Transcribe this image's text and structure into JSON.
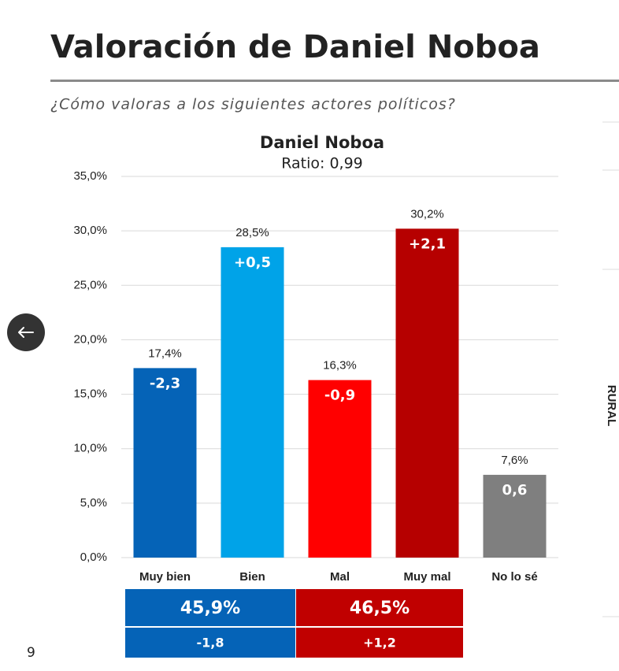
{
  "page_title": "Valoración de Daniel Noboa",
  "question": "¿Cómo valoras a los siguientes actores políticos?",
  "side_label": "RURAL",
  "page_number": "9",
  "chart_data": {
    "type": "bar",
    "title": "Daniel Noboa",
    "subtitle": "Ratio: 0,99",
    "categories": [
      "Muy bien",
      "Bien",
      "Mal",
      "Muy mal",
      "No lo sé"
    ],
    "values": [
      17.4,
      28.5,
      16.3,
      30.2,
      7.6
    ],
    "value_labels": [
      "17,4%",
      "28,5%",
      "16,3%",
      "30,2%",
      "7,6%"
    ],
    "changes": [
      -2.3,
      0.5,
      -0.9,
      2.1,
      0.6
    ],
    "change_labels": [
      "-2,3",
      "+0,5",
      "-0,9",
      "+2,1",
      "0,6"
    ],
    "colors": [
      "#0563b7",
      "#00a3e8",
      "#ff0000",
      "#b60000",
      "#7f7f7f"
    ],
    "ylim": [
      0,
      35
    ],
    "yticks": [
      {
        "value": 0,
        "label": "0,0%"
      },
      {
        "value": 5,
        "label": "5,0%"
      },
      {
        "value": 10,
        "label": "10,0%"
      },
      {
        "value": 15,
        "label": "15,0%"
      },
      {
        "value": 20,
        "label": "20,0%"
      },
      {
        "value": 25,
        "label": "25,0%"
      },
      {
        "value": 30,
        "label": "30,0%"
      },
      {
        "value": 35,
        "label": "35,0%"
      }
    ],
    "grid": true,
    "summary": [
      {
        "total": "45,9%",
        "change": "-1,8",
        "color": "#0563b7"
      },
      {
        "total": "46,5%",
        "change": "+1,2",
        "color": "#c00000"
      }
    ]
  }
}
